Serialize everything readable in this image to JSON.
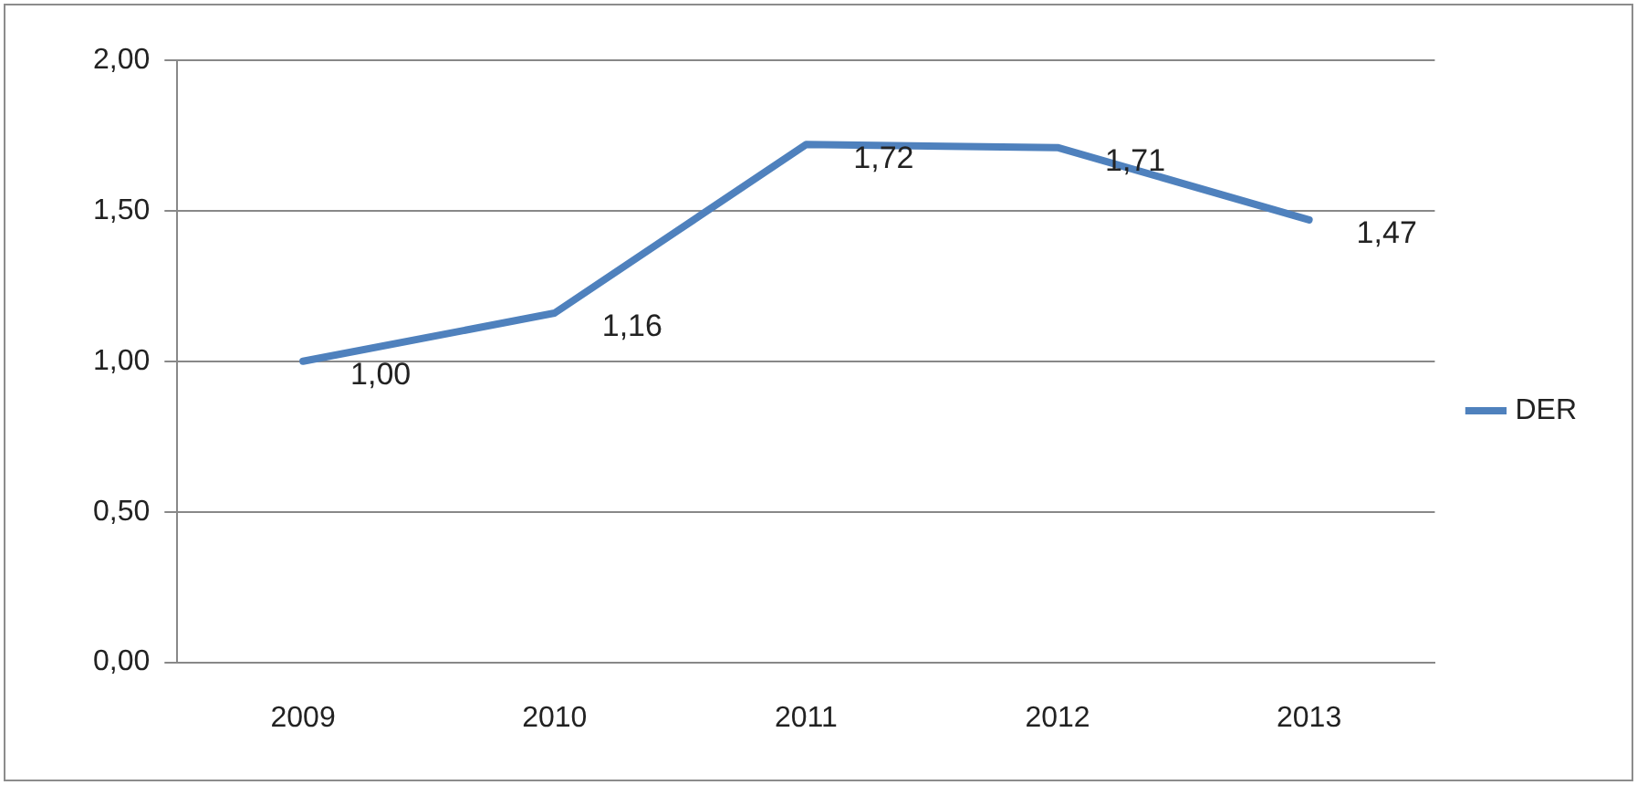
{
  "chart_data": {
    "type": "line",
    "categories": [
      "2009",
      "2010",
      "2011",
      "2012",
      "2013"
    ],
    "series": [
      {
        "name": "DER",
        "color": "#4f81bd",
        "values": [
          1.0,
          1.16,
          1.72,
          1.71,
          1.47
        ],
        "value_labels": [
          "1,00",
          "1,16",
          "1,72",
          "1,71",
          "1,47"
        ]
      }
    ],
    "ylim": [
      0,
      2
    ],
    "yticks": [
      {
        "value": 0,
        "label": "0,00"
      },
      {
        "value": 0.5,
        "label": "0,50"
      },
      {
        "value": 1,
        "label": "1,00"
      },
      {
        "value": 1.5,
        "label": "1,50"
      },
      {
        "value": 2,
        "label": "2,00"
      }
    ],
    "grid": "y",
    "legend": "right",
    "marker": "none",
    "line_style": "solid"
  }
}
